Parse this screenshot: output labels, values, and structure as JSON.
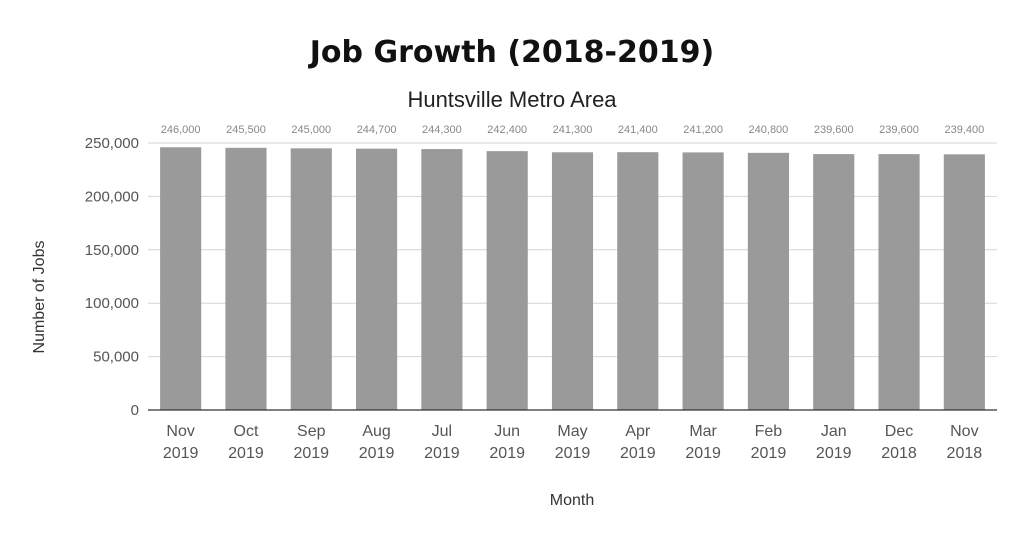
{
  "chart_data": {
    "type": "bar",
    "title": "Job Growth (2018-2019)",
    "subtitle": "Huntsville Metro Area",
    "xlabel": "Month",
    "ylabel": "Number of Jobs",
    "ylim": [
      0,
      250000
    ],
    "yticks": [
      "0",
      "50,000",
      "100,000",
      "150,000",
      "200,000",
      "250,000"
    ],
    "ytick_values": [
      0,
      50000,
      100000,
      150000,
      200000,
      250000
    ],
    "grid": true,
    "legend": "none",
    "bar_color": "#9a9a9a",
    "categories": [
      [
        "Nov",
        "2019"
      ],
      [
        "Oct",
        "2019"
      ],
      [
        "Sep",
        "2019"
      ],
      [
        "Aug",
        "2019"
      ],
      [
        "Jul",
        "2019"
      ],
      [
        "Jun",
        "2019"
      ],
      [
        "May",
        "2019"
      ],
      [
        "Apr",
        "2019"
      ],
      [
        "Mar",
        "2019"
      ],
      [
        "Feb",
        "2019"
      ],
      [
        "Jan",
        "2019"
      ],
      [
        "Dec",
        "2018"
      ],
      [
        "Nov",
        "2018"
      ]
    ],
    "values": [
      246000,
      245500,
      245000,
      244700,
      244300,
      242400,
      241300,
      241400,
      241200,
      240800,
      239600,
      239600,
      239400
    ],
    "data_labels": [
      "246,000",
      "245,500",
      "245,000",
      "244,700",
      "244,300",
      "242,400",
      "241,300",
      "241,400",
      "241,200",
      "240,800",
      "239,600",
      "239,600",
      "239,400"
    ]
  }
}
